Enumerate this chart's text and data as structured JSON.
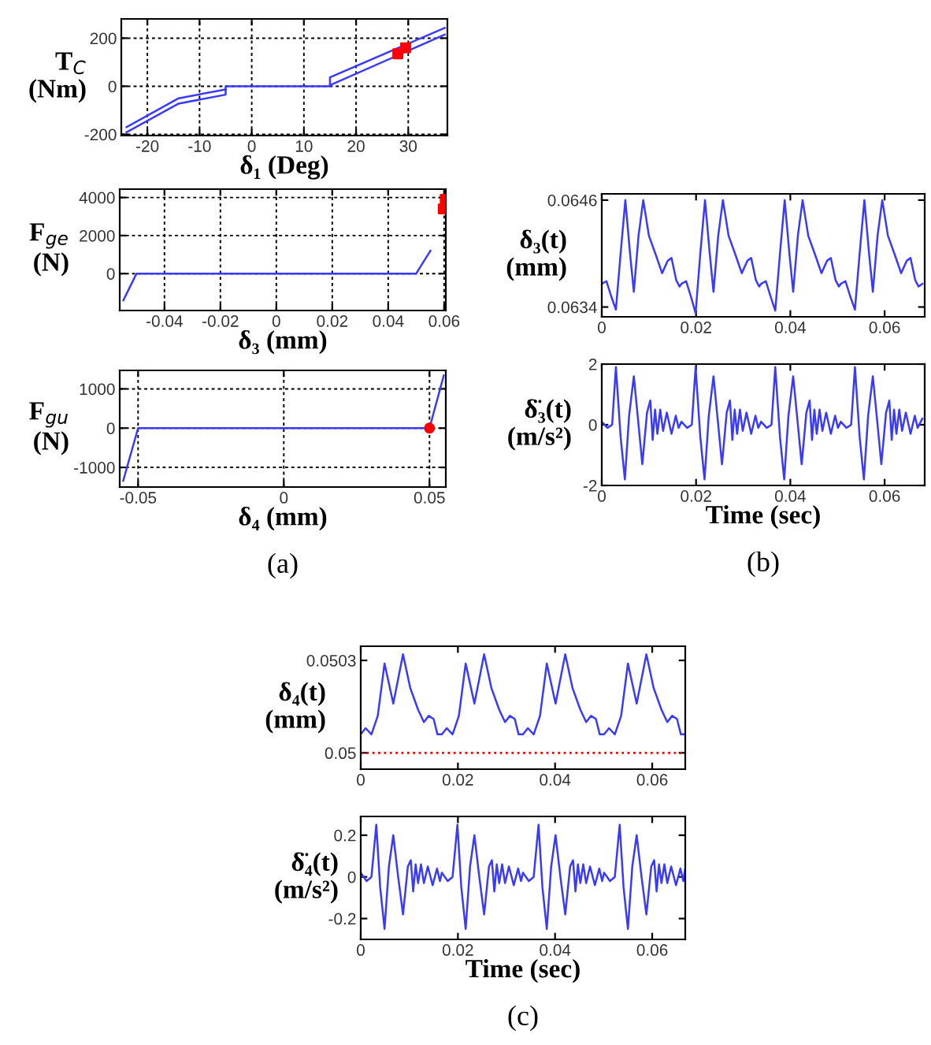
{
  "chart_data": [
    {
      "type": "line",
      "xlabel": "δ₁ (Deg)",
      "ylabel": "T$_{C}$\n(Nm)",
      "xlim": [
        -25,
        37.5
      ],
      "ylim": [
        -205,
        280
      ],
      "xticks": [
        -20,
        -10,
        0,
        10,
        20,
        30
      ],
      "yticks": [
        -200,
        0,
        200
      ],
      "grid": true,
      "series": [
        {
          "color": "#3a3aff",
          "x": [
            -24,
            -14,
            -5,
            -5,
            15,
            15,
            37
          ],
          "values": [
            -191,
            -72,
            -35,
            0,
            0,
            37,
            243
          ]
        },
        {
          "color": "#3a3aff",
          "x": [
            -24,
            -14,
            -5
          ],
          "values": [
            -170,
            -50,
            -13
          ]
        },
        {
          "color": "#3a3aff",
          "x": [
            15,
            37
          ],
          "values": [
            4,
            215
          ]
        },
        {
          "type": "scatter",
          "marker": "square",
          "color": "#ff0000",
          "x": [
            28,
            29.5
          ],
          "values": [
            135,
            160
          ]
        }
      ]
    },
    {
      "type": "line",
      "xlabel": "δ₃ (mm)",
      "ylabel": "F$_{ge}$\n(N)",
      "xlim": [
        -0.056,
        0.0606
      ],
      "ylim": [
        -1940,
        4440
      ],
      "xticks": [
        -0.04,
        -0.02,
        0,
        0.02,
        0.04,
        0.06
      ],
      "yticks": [
        0,
        2000,
        4000
      ],
      "grid": true,
      "series": [
        {
          "color": "#3a3aff",
          "x": [
            -0.0547,
            -0.05,
            0.05,
            0.0551
          ],
          "values": [
            -1400,
            0,
            0,
            1200
          ]
        },
        {
          "type": "scatter",
          "marker": "square",
          "color": "#ff0000",
          "x": [
            0.0597,
            0.0604
          ],
          "values": [
            3400,
            3900
          ]
        }
      ]
    },
    {
      "type": "line",
      "xlabel": "δ₄ (mm)",
      "ylabel": "F$_{gu}$\n(N)",
      "xlim": [
        -0.0563,
        0.0556
      ],
      "ylim": [
        -1500,
        1470
      ],
      "xticks": [
        -0.05,
        0,
        0.05
      ],
      "yticks": [
        -1000,
        0,
        1000
      ],
      "grid": true,
      "annotations": [
        "(a)"
      ],
      "series": [
        {
          "color": "#3a3aff",
          "x": [
            -0.0551,
            -0.05,
            0.05,
            0.0549
          ],
          "values": [
            -1340,
            0,
            0,
            1340
          ]
        },
        {
          "type": "scatter",
          "marker": "circle",
          "color": "#ff0000",
          "x": [
            0.05
          ],
          "values": [
            0
          ]
        }
      ]
    },
    {
      "type": "line",
      "ylabel": "δ₃(t)\n(mm)",
      "xlim": [
        0,
        0.0685
      ],
      "ylim": [
        0.06329,
        0.06467
      ],
      "xticks": [
        0,
        0.02,
        0.04,
        0.06
      ],
      "yticks": [
        0.0634,
        0.0646
      ],
      "series": [
        {
          "color": "#3a3aff",
          "x": [
            0,
            0.001,
            0.002,
            0.003,
            0.004,
            0.005,
            0.006,
            0.0068,
            0.0078,
            0.0088,
            0.01,
            0.0115,
            0.0128,
            0.014,
            0.0148,
            0.0158,
            0.0165,
            0.0169,
            0.0179,
            0.0189,
            0.0199,
            0.0209,
            0.0219,
            0.0229,
            0.0237,
            0.0247,
            0.0257,
            0.0269,
            0.0284,
            0.0297,
            0.0309,
            0.0317,
            0.0327,
            0.0334,
            0.0338,
            0.0348,
            0.0358,
            0.0368,
            0.0378,
            0.0388,
            0.0398,
            0.0406,
            0.0416,
            0.0426,
            0.0438,
            0.0453,
            0.0466,
            0.0478,
            0.0486,
            0.0496,
            0.0503,
            0.0507,
            0.0517,
            0.0527,
            0.0537,
            0.0547,
            0.0557,
            0.0567,
            0.0575,
            0.0585,
            0.0595,
            0.0607,
            0.0622,
            0.0635,
            0.0647,
            0.0655,
            0.0665,
            0.0672,
            0.068
          ],
          "values": [
            0.06366,
            0.06369,
            0.06352,
            0.06337,
            0.064,
            0.0646,
            0.064,
            0.06357,
            0.0642,
            0.0646,
            0.0642,
            0.06398,
            0.06378,
            0.06392,
            0.06395,
            0.0637,
            0.06363,
            0.06366,
            0.06369,
            0.06352,
            0.06333,
            0.064,
            0.0646,
            0.064,
            0.06357,
            0.0642,
            0.0646,
            0.0642,
            0.06398,
            0.06378,
            0.06392,
            0.06395,
            0.0637,
            0.06363,
            0.06366,
            0.06369,
            0.06352,
            0.06336,
            0.064,
            0.0646,
            0.064,
            0.06357,
            0.0642,
            0.0646,
            0.0642,
            0.06398,
            0.06378,
            0.06392,
            0.06395,
            0.0637,
            0.06363,
            0.06366,
            0.06369,
            0.06352,
            0.06337,
            0.064,
            0.0646,
            0.064,
            0.06357,
            0.0642,
            0.0646,
            0.0642,
            0.06398,
            0.06378,
            0.06392,
            0.06395,
            0.0637,
            0.06363,
            0.06366
          ]
        }
      ]
    },
    {
      "type": "line",
      "xlabel": "Time (sec)",
      "ylabel": "δ̈₃(t)\n(m/s²)",
      "xlim": [
        0,
        0.0685
      ],
      "ylim": [
        -2,
        2
      ],
      "xticks": [
        0,
        0.02,
        0.04,
        0.06
      ],
      "yticks": [
        -2,
        0,
        2
      ],
      "annotations": [
        "(b)"
      ],
      "series": [
        {
          "color": "#3a3aff",
          "x": [
            0,
            0.0012,
            0.0022,
            0.003,
            0.004,
            0.0049,
            0.0058,
            0.0068,
            0.0078,
            0.0086,
            0.0096,
            0.0103,
            0.0108,
            0.0113,
            0.0118,
            0.0124,
            0.013,
            0.0138,
            0.0148,
            0.0157,
            0.0163,
            0.0169,
            0.0181,
            0.0191,
            0.0199,
            0.0209,
            0.0218,
            0.0227,
            0.0237,
            0.0247,
            0.0255,
            0.0265,
            0.0272,
            0.0277,
            0.0282,
            0.0287,
            0.0293,
            0.0299,
            0.0307,
            0.0317,
            0.0326,
            0.0332,
            0.0338,
            0.035,
            0.036,
            0.0368,
            0.0378,
            0.0387,
            0.0396,
            0.0406,
            0.0416,
            0.0424,
            0.0434,
            0.0441,
            0.0446,
            0.0451,
            0.0456,
            0.0462,
            0.0468,
            0.0476,
            0.0486,
            0.0495,
            0.0501,
            0.0507,
            0.0519,
            0.0529,
            0.0537,
            0.0547,
            0.0556,
            0.0565,
            0.0575,
            0.0585,
            0.0593,
            0.0603,
            0.061,
            0.0615,
            0.062,
            0.0625,
            0.0631,
            0.0637,
            0.0645,
            0.0655,
            0.0664,
            0.067,
            0.068
          ],
          "values": [
            0.1,
            -0.1,
            0,
            1.9,
            -0.4,
            -1.8,
            0.3,
            1.6,
            0,
            -1.3,
            0.4,
            0.8,
            -0.5,
            0.5,
            -0.3,
            0.5,
            -0.2,
            0.4,
            -0.3,
            0.3,
            -0.1,
            0.1,
            -0.1,
            0,
            1.9,
            -0.4,
            -1.8,
            0.3,
            1.6,
            0,
            -1.3,
            0.4,
            0.8,
            -0.5,
            0.5,
            -0.3,
            0.5,
            -0.2,
            0.4,
            -0.3,
            0.3,
            -0.1,
            0.1,
            -0.1,
            0,
            1.9,
            -0.4,
            -1.8,
            0.3,
            1.6,
            0,
            -1.3,
            0.4,
            0.8,
            -0.5,
            0.5,
            -0.3,
            0.5,
            -0.2,
            0.4,
            -0.3,
            0.3,
            -0.1,
            0.1,
            -0.1,
            0,
            1.9,
            -0.4,
            -1.8,
            0.3,
            1.6,
            0,
            -1.3,
            0.4,
            0.8,
            -0.5,
            0.5,
            -0.3,
            0.5,
            -0.2,
            0.4,
            -0.3,
            0.3,
            -0.1,
            0.2
          ]
        }
      ]
    },
    {
      "type": "line",
      "ylabel": "δ₄(t)\n(mm)",
      "xlim": [
        0,
        0.0668
      ],
      "ylim": [
        0.049947,
        0.050346
      ],
      "xticks": [
        0,
        0.02,
        0.04,
        0.06
      ],
      "yticks": [
        0.05,
        0.0503
      ],
      "ref_lines": [
        {
          "axis": "y",
          "value": 0.05,
          "color": "#ff0000",
          "line_style": "dotted"
        }
      ],
      "series": [
        {
          "color": "#3a3aff",
          "x": [
            0,
            0.001,
            0.0022,
            0.0035,
            0.0049,
            0.0067,
            0.0087,
            0.0102,
            0.0118,
            0.013,
            0.014,
            0.015,
            0.0158,
            0.0167,
            0.0177,
            0.0189,
            0.0202,
            0.0216,
            0.0234,
            0.0254,
            0.0269,
            0.0285,
            0.0297,
            0.0307,
            0.0317,
            0.0325,
            0.0334,
            0.0344,
            0.0356,
            0.0369,
            0.0383,
            0.0401,
            0.0421,
            0.0436,
            0.0452,
            0.0464,
            0.0474,
            0.0484,
            0.0492,
            0.0501,
            0.0511,
            0.0523,
            0.0536,
            0.055,
            0.0568,
            0.0588,
            0.0603,
            0.0619,
            0.0631,
            0.0641,
            0.0651,
            0.0659,
            0.0668
          ],
          "values": [
            0.05006,
            0.05008,
            0.05006,
            0.05012,
            0.05029,
            0.05016,
            0.05032,
            0.05021,
            0.05014,
            0.0501,
            0.05012,
            0.05011,
            0.05006,
            0.05006,
            0.05008,
            0.05006,
            0.05012,
            0.05029,
            0.05016,
            0.05032,
            0.05021,
            0.05014,
            0.0501,
            0.05012,
            0.05011,
            0.05006,
            0.05006,
            0.05008,
            0.05006,
            0.05012,
            0.05029,
            0.05016,
            0.05032,
            0.05021,
            0.05014,
            0.0501,
            0.05012,
            0.05011,
            0.05006,
            0.05006,
            0.05008,
            0.05006,
            0.05012,
            0.05029,
            0.05016,
            0.05032,
            0.05021,
            0.05014,
            0.0501,
            0.05012,
            0.05011,
            0.05006,
            0.05006
          ]
        }
      ]
    },
    {
      "type": "line",
      "xlabel": "Time (sec)",
      "ylabel": "δ̈₄(t)\n(m/s²)",
      "xlim": [
        0,
        0.0668
      ],
      "ylim": [
        -0.3,
        0.29
      ],
      "xticks": [
        0,
        0.02,
        0.04,
        0.06
      ],
      "yticks": [
        -0.2,
        0,
        0.2
      ],
      "annotations": [
        "(c)"
      ],
      "series": [
        {
          "color": "#3a3aff",
          "x": [
            0,
            0.0012,
            0.0022,
            0.0032,
            0.004,
            0.0049,
            0.0058,
            0.0067,
            0.0077,
            0.0087,
            0.0097,
            0.0103,
            0.0108,
            0.0113,
            0.0118,
            0.0124,
            0.013,
            0.0138,
            0.0148,
            0.0157,
            0.0163,
            0.0167,
            0.0179,
            0.0189,
            0.0199,
            0.0207,
            0.0216,
            0.0225,
            0.0234,
            0.0244,
            0.0254,
            0.0264,
            0.027,
            0.0275,
            0.028,
            0.0285,
            0.0291,
            0.0297,
            0.0305,
            0.0315,
            0.0324,
            0.033,
            0.0334,
            0.0346,
            0.0356,
            0.0366,
            0.0374,
            0.0383,
            0.0392,
            0.0401,
            0.0411,
            0.0421,
            0.0431,
            0.0437,
            0.0442,
            0.0447,
            0.0452,
            0.0458,
            0.0464,
            0.0472,
            0.0482,
            0.0491,
            0.0497,
            0.0501,
            0.0513,
            0.0523,
            0.0533,
            0.0541,
            0.055,
            0.0559,
            0.0568,
            0.0578,
            0.0588,
            0.0598,
            0.0604,
            0.0609,
            0.0614,
            0.0619,
            0.0625,
            0.0631,
            0.0639,
            0.0649,
            0.0658,
            0.0664,
            0.0668
          ],
          "values": [
            0.02,
            -0.02,
            0,
            0.25,
            -0.05,
            -0.25,
            0.05,
            0.2,
            0,
            -0.18,
            0.05,
            0.08,
            -0.07,
            0.06,
            -0.03,
            0.06,
            -0.03,
            0.05,
            -0.04,
            0.04,
            -0.02,
            0.02,
            -0.02,
            0,
            0.25,
            -0.05,
            -0.25,
            0.05,
            0.2,
            0,
            -0.18,
            0.05,
            0.08,
            -0.07,
            0.06,
            -0.03,
            0.06,
            -0.03,
            0.05,
            -0.04,
            0.04,
            -0.02,
            0.02,
            -0.02,
            0,
            0.25,
            -0.05,
            -0.25,
            0.05,
            0.2,
            0,
            -0.18,
            0.05,
            0.08,
            -0.07,
            0.06,
            -0.03,
            0.06,
            -0.03,
            0.05,
            -0.04,
            0.04,
            -0.02,
            0.02,
            -0.02,
            0,
            0.25,
            -0.05,
            -0.25,
            0.05,
            0.2,
            0,
            -0.18,
            0.05,
            0.08,
            -0.07,
            0.06,
            -0.03,
            0.06,
            -0.03,
            0.05,
            -0.04,
            0.04,
            -0.02,
            0.04
          ]
        }
      ]
    }
  ]
}
